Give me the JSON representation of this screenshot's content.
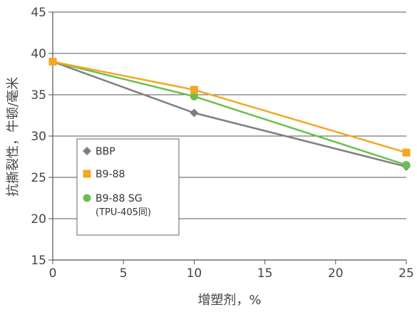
{
  "chart_data": {
    "type": "line",
    "xlabel": "增塑剂，%",
    "ylabel": "抗撕裂性，牛顿/毫米",
    "xlim": [
      0,
      25
    ],
    "ylim": [
      15,
      45
    ],
    "xticks": [
      0,
      5,
      10,
      15,
      20,
      25
    ],
    "yticks": [
      15,
      20,
      25,
      30,
      35,
      40,
      45
    ],
    "grid": "horizontal",
    "legend_position": "center-left",
    "series": [
      {
        "name": "BBP",
        "marker": "diamond",
        "color": "#7f7f7f",
        "points": [
          {
            "x": 0,
            "y": 39.0
          },
          {
            "x": 10,
            "y": 32.8
          },
          {
            "x": 25,
            "y": 26.3
          }
        ]
      },
      {
        "name": "B9-88",
        "marker": "square",
        "color": "#f5a623",
        "points": [
          {
            "x": 0,
            "y": 39.0
          },
          {
            "x": 10,
            "y": 35.6
          },
          {
            "x": 25,
            "y": 28.0
          }
        ]
      },
      {
        "name": "B9-88 SG",
        "name_sub": "(TPU-405同)",
        "marker": "circle",
        "color": "#6abf4b",
        "points": [
          {
            "x": 0,
            "y": 39.0
          },
          {
            "x": 10,
            "y": 34.8
          },
          {
            "x": 25,
            "y": 26.5
          }
        ]
      }
    ]
  }
}
